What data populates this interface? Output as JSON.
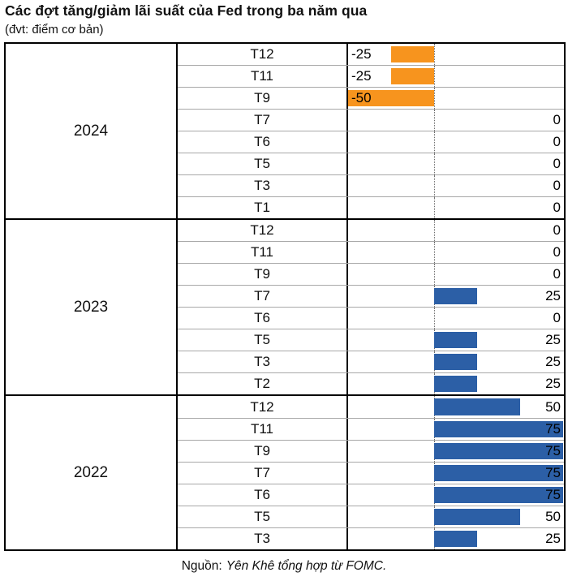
{
  "title": "Các đợt tăng/giảm lãi suất của Fed trong ba năm qua",
  "subtitle": "(đvt: điểm cơ bản)",
  "source": {
    "prefix": "Nguồn:",
    "text": "Yên Khê tổng hợp từ FOMC."
  },
  "colors": {
    "positive_bar": "#2C5FA6",
    "negative_bar": "#F7941E",
    "grid_line": "#a8a8a8",
    "border": "#000000"
  },
  "chart_data": {
    "type": "bar",
    "orientation": "horizontal",
    "unit": "điểm cơ bản (basis points)",
    "xlim": [
      -50,
      75
    ],
    "axis_center": 0,
    "legend": "none",
    "groups": [
      {
        "year": "2024",
        "rows": [
          {
            "month": "T12",
            "value": -25,
            "label": "-25"
          },
          {
            "month": "T11",
            "value": -25,
            "label": "-25"
          },
          {
            "month": "T9",
            "value": -50,
            "label": "-50"
          },
          {
            "month": "T7",
            "value": 0,
            "label": "0"
          },
          {
            "month": "T6",
            "value": 0,
            "label": "0"
          },
          {
            "month": "T5",
            "value": 0,
            "label": "0"
          },
          {
            "month": "T3",
            "value": 0,
            "label": "0"
          },
          {
            "month": "T1",
            "value": 0,
            "label": "0"
          }
        ]
      },
      {
        "year": "2023",
        "rows": [
          {
            "month": "T12",
            "value": 0,
            "label": "0"
          },
          {
            "month": "T11",
            "value": 0,
            "label": "0"
          },
          {
            "month": "T9",
            "value": 0,
            "label": "0"
          },
          {
            "month": "T7",
            "value": 25,
            "label": "25"
          },
          {
            "month": "T6",
            "value": 0,
            "label": "0"
          },
          {
            "month": "T5",
            "value": 25,
            "label": "25"
          },
          {
            "month": "T3",
            "value": 25,
            "label": "25"
          },
          {
            "month": "T2",
            "value": 25,
            "label": "25"
          }
        ]
      },
      {
        "year": "2022",
        "rows": [
          {
            "month": "T12",
            "value": 50,
            "label": "50"
          },
          {
            "month": "T11",
            "value": 75,
            "label": "75"
          },
          {
            "month": "T9",
            "value": 75,
            "label": "75"
          },
          {
            "month": "T7",
            "value": 75,
            "label": "75"
          },
          {
            "month": "T6",
            "value": 75,
            "label": "75"
          },
          {
            "month": "T5",
            "value": 50,
            "label": "50"
          },
          {
            "month": "T3",
            "value": 25,
            "label": "25"
          }
        ]
      }
    ]
  }
}
